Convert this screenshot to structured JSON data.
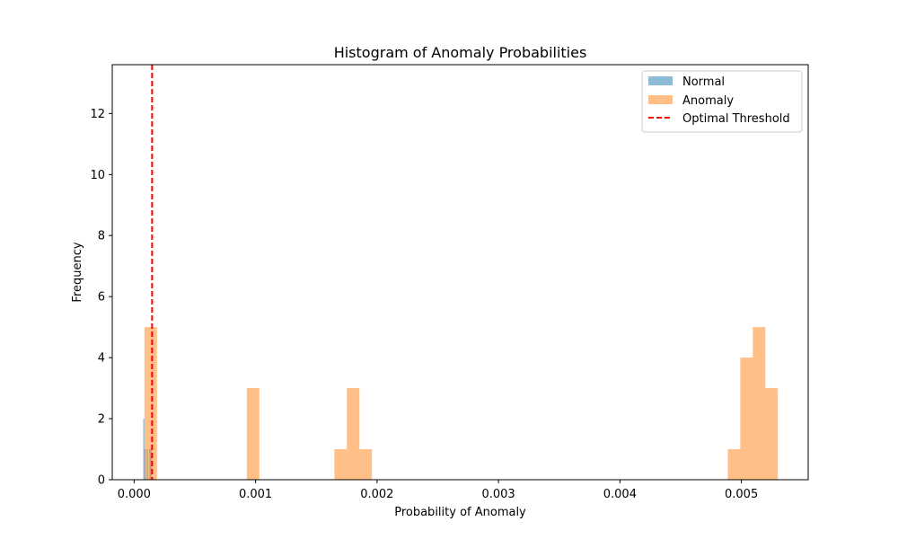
{
  "chart_data": {
    "type": "bar",
    "title": "Histogram of Anomaly Probabilities",
    "xlabel": "Probability of Anomaly",
    "ylabel": "Frequency",
    "xlim": [
      -0.00018,
      0.00555
    ],
    "ylim": [
      0,
      13.6
    ],
    "xticks": [
      0,
      0.001,
      0.002,
      0.003,
      0.004,
      0.005
    ],
    "xtick_labels": [
      "0.000",
      "0.001",
      "0.002",
      "0.003",
      "0.004",
      "0.005"
    ],
    "yticks": [
      0,
      2,
      4,
      6,
      8,
      10,
      12
    ],
    "ytick_labels": [
      "0",
      "2",
      "4",
      "6",
      "8",
      "10",
      "12"
    ],
    "grid": false,
    "legend_position": "top-right",
    "series": [
      {
        "name": "Normal",
        "color": "#1f77b4",
        "opacity": 0.5,
        "bins": [
          {
            "x0": 7.5e-05,
            "x1": 8.5e-05,
            "count": 2
          },
          {
            "x0": 8.5e-05,
            "x1": 9.5e-05,
            "count": 1
          },
          {
            "x0": 0.000105,
            "x1": 0.000115,
            "count": 1
          },
          {
            "x0": 0.000125,
            "x1": 0.000135,
            "count": 1
          },
          {
            "x0": 0.000135,
            "x1": 0.000145,
            "count": 1
          }
        ]
      },
      {
        "name": "Anomaly",
        "color": "#ff7f0e",
        "opacity": 0.5,
        "bins": [
          {
            "x0": 8.5e-05,
            "x1": 0.000188,
            "count": 5
          },
          {
            "x0": 0.000928,
            "x1": 0.001031,
            "count": 3
          },
          {
            "x0": 0.001649,
            "x1": 0.001752,
            "count": 1
          },
          {
            "x0": 0.001752,
            "x1": 0.001855,
            "count": 3
          },
          {
            "x0": 0.001855,
            "x1": 0.001958,
            "count": 1
          },
          {
            "x0": 0.004888,
            "x1": 0.004991,
            "count": 1
          },
          {
            "x0": 0.004991,
            "x1": 0.005094,
            "count": 4
          },
          {
            "x0": 0.005094,
            "x1": 0.005197,
            "count": 5
          },
          {
            "x0": 0.005197,
            "x1": 0.0053,
            "count": 3
          }
        ]
      }
    ],
    "threshold": {
      "name": "Optimal Threshold",
      "x": 0.000148,
      "color": "#ff0000",
      "style": "dashed"
    }
  }
}
